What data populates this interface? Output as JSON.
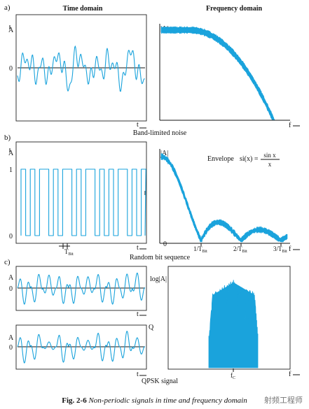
{
  "labels": {
    "a": "a)",
    "b": "b)",
    "c": "c)",
    "time_domain": "Time domain",
    "frequency_domain": "Frequency domain",
    "band_limited_noise": "Band-limited noise",
    "random_bit_sequence": "Random bit sequence",
    "qpsk_signal": "QPSK signal"
  },
  "axes": {
    "A": "A",
    "zero": "0",
    "one": "1",
    "t": "t",
    "f": "f",
    "absA": "|A|",
    "logA": "log|A|",
    "Q": "Q",
    "t_bit": "T",
    "t_bit_sub": "Bit",
    "fc": "f",
    "fc_sub": "C"
  },
  "envelope": {
    "label": "Envelope",
    "si": "si(x) =",
    "num": "sin x",
    "den": "x"
  },
  "freq_ticks": [
    {
      "main": "1/T",
      "sub": "Bit"
    },
    {
      "main": "2/T",
      "sub": "Bit"
    },
    {
      "main": "3/T",
      "sub": "Bit"
    }
  ],
  "colors": {
    "signal": "#1aa3dc"
  },
  "caption": {
    "number": "Fig. 2-6",
    "text": "Non-periodic signals in time and frequency domain"
  },
  "watermark": "射频工程师"
}
